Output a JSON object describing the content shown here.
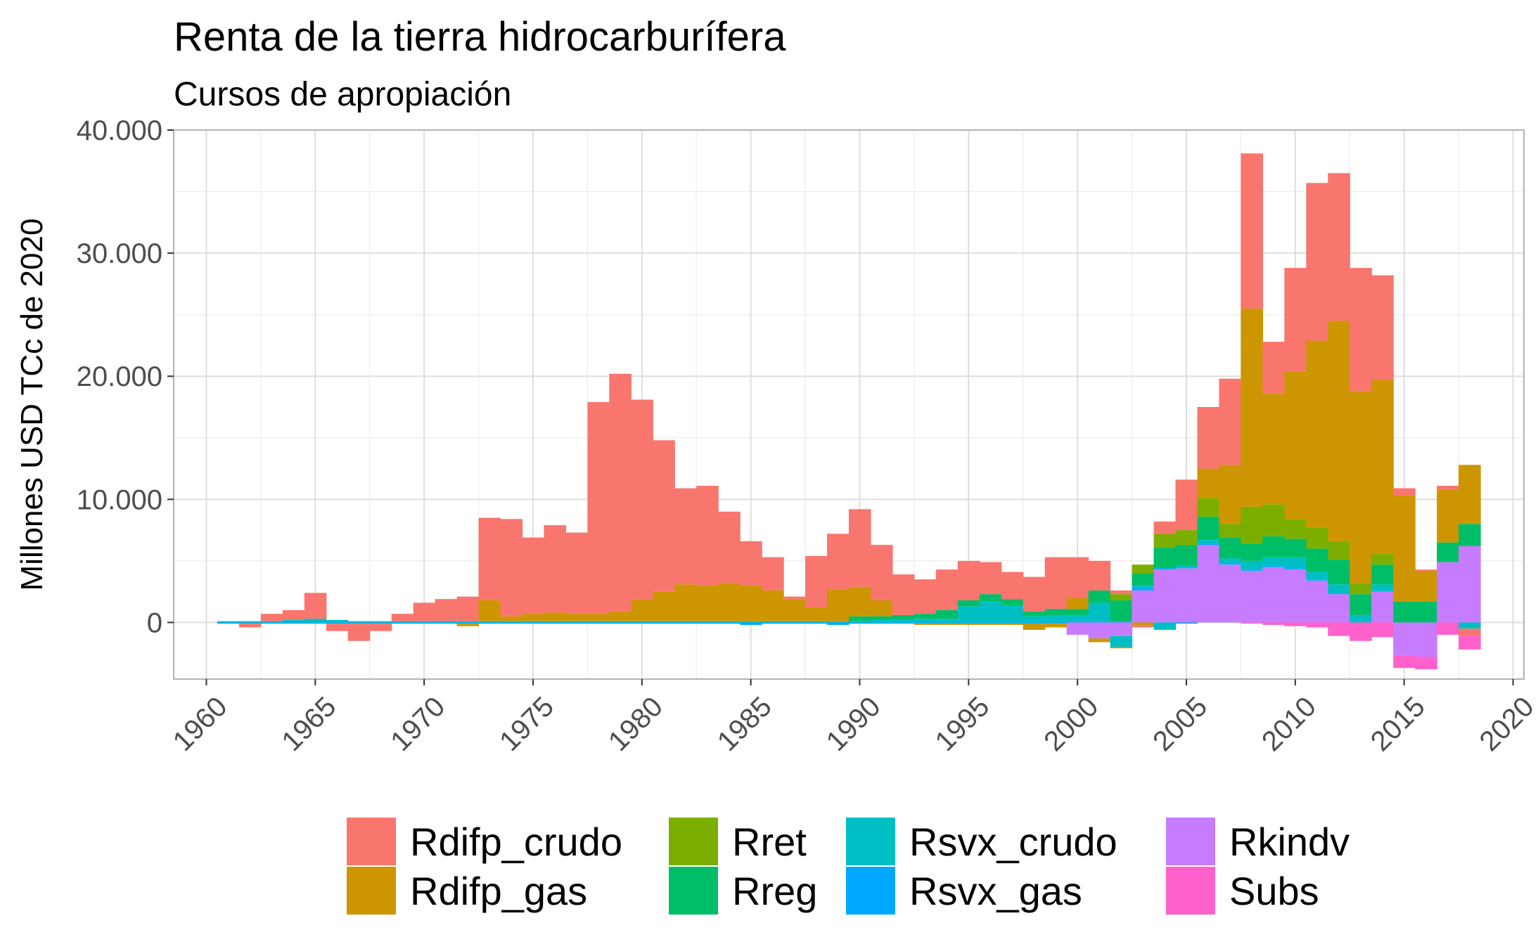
{
  "chart_data": {
    "type": "bar",
    "stacked": true,
    "title": "Renta de la tierra hidrocarburífera",
    "subtitle": "Cursos de apropiación",
    "ylabel": "Millones USD TCc de 2020",
    "xlabel": "",
    "xlim": [
      1958.5,
      2020.5
    ],
    "ylim": [
      -4600,
      40000
    ],
    "x_ticks": [
      1960,
      1965,
      1970,
      1975,
      1980,
      1985,
      1990,
      1995,
      2000,
      2005,
      2010,
      2015,
      2020
    ],
    "x_tick_labels": [
      "1960",
      "1965",
      "1970",
      "1975",
      "1980",
      "1985",
      "1990",
      "1995",
      "2000",
      "2005",
      "2010",
      "2015",
      "2020"
    ],
    "y_ticks": [
      0,
      10000,
      20000,
      30000,
      40000
    ],
    "y_tick_labels": [
      "0",
      "10.000",
      "20.000",
      "30.000",
      "40.000"
    ],
    "grid": true,
    "legend_position": "bottom",
    "x": [
      1961,
      1962,
      1963,
      1964,
      1965,
      1966,
      1967,
      1968,
      1969,
      1970,
      1971,
      1972,
      1973,
      1974,
      1975,
      1976,
      1977,
      1978,
      1979,
      1980,
      1981,
      1982,
      1983,
      1984,
      1985,
      1986,
      1987,
      1988,
      1989,
      1990,
      1991,
      1992,
      1993,
      1994,
      1995,
      1996,
      1997,
      1998,
      1999,
      2000,
      2001,
      2002,
      2003,
      2004,
      2005,
      2006,
      2007,
      2008,
      2009,
      2010,
      2011,
      2012,
      2013,
      2014,
      2015,
      2016,
      2017,
      2018
    ],
    "series": [
      {
        "name": "Rkindv",
        "color": "#C77CFF",
        "values": [
          0,
          0,
          0,
          0,
          0,
          0,
          0,
          0,
          0,
          0,
          0,
          0,
          0,
          0,
          0,
          0,
          0,
          0,
          0,
          0,
          0,
          0,
          0,
          0,
          0,
          0,
          0,
          0,
          0,
          0,
          0,
          0,
          0,
          0,
          0,
          0,
          0,
          0,
          0,
          -1000,
          -1300,
          -1100,
          2600,
          4300,
          4400,
          6300,
          4700,
          4200,
          4500,
          4300,
          3400,
          2300,
          0,
          2500,
          -2700,
          -2800,
          4900,
          6200
        ]
      },
      {
        "name": "Rsvx_gas",
        "color": "#00A9FF",
        "values": [
          -100,
          -100,
          -100,
          -100,
          -100,
          -100,
          -100,
          -100,
          -100,
          -100,
          -100,
          -100,
          -100,
          -100,
          -100,
          -100,
          -100,
          -100,
          -100,
          -100,
          -100,
          -100,
          -100,
          -100,
          -200,
          -100,
          -100,
          -100,
          -200,
          -100,
          -100,
          -100,
          -100,
          -100,
          -100,
          -100,
          -100,
          -100,
          -100,
          100,
          100,
          100,
          200,
          100,
          -100,
          100,
          100,
          100,
          100,
          100,
          100,
          100,
          0,
          0,
          0,
          0,
          0,
          0
        ]
      },
      {
        "name": "Rsvx_crudo",
        "color": "#00BFC4",
        "values": [
          100,
          100,
          100,
          200,
          300,
          200,
          100,
          100,
          100,
          100,
          100,
          100,
          100,
          100,
          100,
          100,
          100,
          100,
          100,
          100,
          100,
          100,
          100,
          100,
          100,
          100,
          100,
          100,
          100,
          100,
          200,
          200,
          300,
          300,
          1300,
          1700,
          1400,
          500,
          600,
          500,
          1500,
          -900,
          200,
          -600,
          200,
          300,
          400,
          700,
          700,
          900,
          600,
          700,
          600,
          600,
          0,
          0,
          0,
          -500
        ]
      },
      {
        "name": "Rreg",
        "color": "#00BE67",
        "values": [
          0,
          0,
          0,
          0,
          0,
          0,
          0,
          0,
          0,
          0,
          0,
          0,
          0,
          0,
          0,
          0,
          0,
          0,
          0,
          0,
          0,
          0,
          0,
          0,
          0,
          0,
          0,
          0,
          0,
          400,
          300,
          400,
          400,
          700,
          500,
          600,
          500,
          400,
          500,
          500,
          1000,
          1700,
          1000,
          1700,
          1700,
          1900,
          1700,
          1400,
          1700,
          1500,
          1900,
          2000,
          1700,
          1600,
          1700,
          1700,
          1600,
          1800
        ]
      },
      {
        "name": "Rret",
        "color": "#7CAE00",
        "values": [
          0,
          0,
          0,
          0,
          0,
          0,
          0,
          0,
          0,
          0,
          0,
          0,
          0,
          0,
          0,
          0,
          0,
          0,
          0,
          0,
          0,
          0,
          0,
          0,
          0,
          0,
          0,
          0,
          0,
          0,
          0,
          0,
          0,
          0,
          0,
          0,
          0,
          0,
          0,
          0,
          0,
          500,
          700,
          1100,
          1200,
          1500,
          1100,
          3000,
          2600,
          1600,
          1700,
          1500,
          900,
          900,
          0,
          0,
          0,
          0
        ]
      },
      {
        "name": "Rdifp_gas",
        "color": "#CD9600",
        "values": [
          0,
          0,
          0,
          0,
          0,
          0,
          0,
          0,
          0,
          0,
          0,
          -200,
          1700,
          400,
          600,
          700,
          600,
          600,
          800,
          1800,
          2400,
          3000,
          2900,
          3100,
          2900,
          2500,
          1800,
          1100,
          2600,
          2400,
          1300,
          0,
          -100,
          -100,
          -100,
          -100,
          -100,
          -500,
          -300,
          900,
          -300,
          -100,
          -200,
          0,
          0,
          2400,
          4800,
          16100,
          9000,
          12000,
          15200,
          17900,
          15600,
          14100,
          8600,
          2500,
          4300,
          4800
        ]
      },
      {
        "name": "Rdifp_crudo",
        "color": "#F8766D",
        "values": [
          0,
          -300,
          600,
          800,
          2100,
          -600,
          -1400,
          -600,
          600,
          1500,
          1800,
          2000,
          6700,
          7900,
          6200,
          7100,
          6600,
          17200,
          19300,
          16200,
          12300,
          7800,
          8100,
          5800,
          3600,
          2700,
          200,
          4200,
          4500,
          6300,
          4500,
          3300,
          2800,
          3300,
          3200,
          2600,
          2200,
          2800,
          4200,
          3300,
          2400,
          300,
          -200,
          1000,
          4100,
          5000,
          7000,
          12600,
          4200,
          8400,
          12800,
          12000,
          10000,
          8500,
          600,
          100,
          300,
          -600
        ]
      },
      {
        "name": "Subs",
        "color": "#FF61CC",
        "values": [
          0,
          0,
          0,
          0,
          0,
          0,
          0,
          0,
          0,
          0,
          0,
          0,
          0,
          0,
          0,
          0,
          0,
          0,
          0,
          0,
          0,
          0,
          0,
          0,
          0,
          0,
          0,
          0,
          0,
          0,
          0,
          0,
          0,
          0,
          0,
          0,
          0,
          0,
          0,
          0,
          0,
          0,
          0,
          0,
          0,
          0,
          0,
          -100,
          -200,
          -300,
          -400,
          -1100,
          -1500,
          -1200,
          -1000,
          -1000,
          -1000,
          -1100
        ]
      }
    ],
    "legend": [
      {
        "name": "Rdifp_crudo",
        "color": "#F8766D"
      },
      {
        "name": "Rdifp_gas",
        "color": "#CD9600"
      },
      {
        "name": "Rret",
        "color": "#7CAE00"
      },
      {
        "name": "Rreg",
        "color": "#00BE67"
      },
      {
        "name": "Rsvx_crudo",
        "color": "#00BFC4"
      },
      {
        "name": "Rsvx_gas",
        "color": "#00A9FF"
      },
      {
        "name": "Rkindv",
        "color": "#C77CFF"
      },
      {
        "name": "Subs",
        "color": "#FF61CC"
      }
    ]
  }
}
